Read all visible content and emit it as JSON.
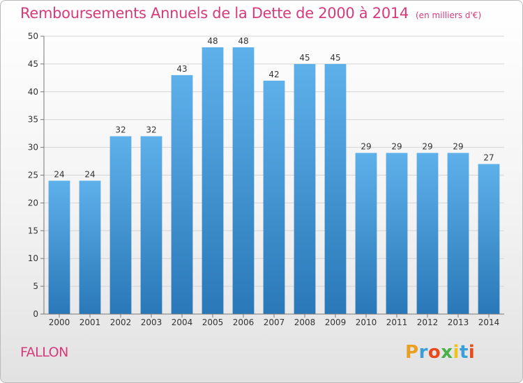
{
  "header": {
    "title": "Remboursements Annuels de la Dette de 2000 à 2014",
    "subtitle": "(en milliers d'€)"
  },
  "footer": {
    "commune": "FALLON",
    "brand": "Proxiti",
    "brand_colors": [
      "#e8a020",
      "#3a9fd8",
      "#e84a1c",
      "#4ab04a",
      "#f2c21c",
      "#3a9fd8",
      "#e84a1c"
    ]
  },
  "colors": {
    "bar_top": "#5eb0ea",
    "bar_bottom": "#2a78b8",
    "title": "#d63a7a"
  },
  "chart_data": {
    "type": "bar",
    "title": "Remboursements Annuels de la Dette de 2000 à 2014",
    "subtitle": "(en milliers d'€)",
    "categories": [
      "2000",
      "2001",
      "2002",
      "2003",
      "2004",
      "2005",
      "2006",
      "2007",
      "2008",
      "2009",
      "2010",
      "2011",
      "2012",
      "2013",
      "2014"
    ],
    "values": [
      24,
      24,
      32,
      32,
      43,
      48,
      48,
      42,
      45,
      45,
      29,
      29,
      29,
      29,
      27
    ],
    "ylim": [
      0,
      50
    ],
    "yticks": [
      0,
      5,
      10,
      15,
      20,
      25,
      30,
      35,
      40,
      45,
      50
    ],
    "grid": true,
    "xlabel": "",
    "ylabel": ""
  }
}
